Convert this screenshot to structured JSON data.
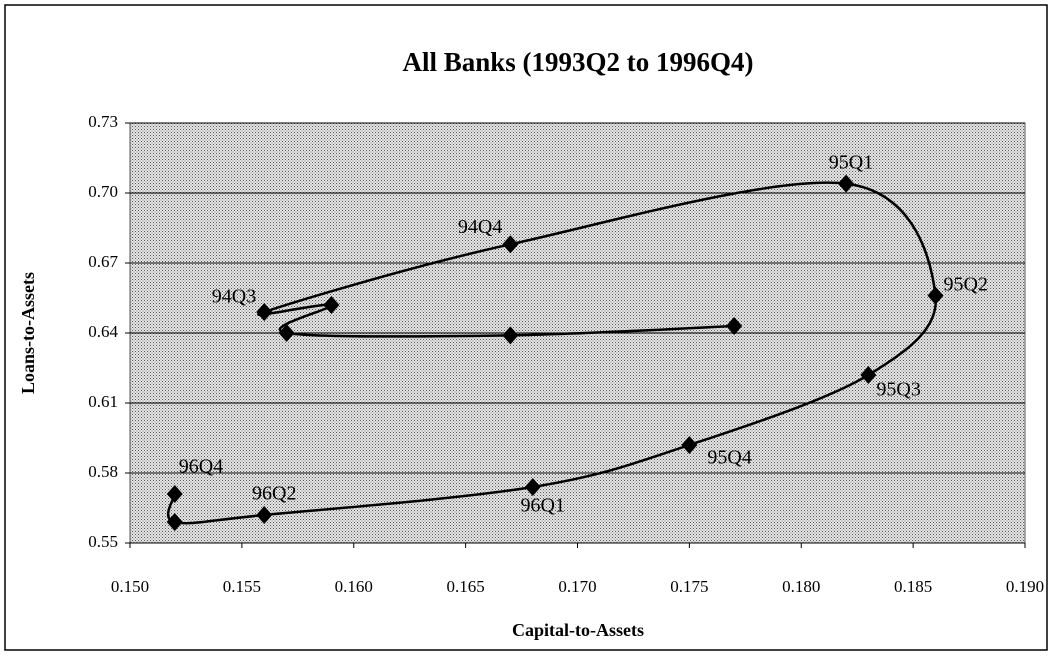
{
  "chart_data": {
    "type": "scatter",
    "title": "All Banks (1993Q2 to 1996Q4)",
    "x_label": "Capital-to-Assets",
    "y_label": "Loans-to-Assets",
    "color": "#000000",
    "x": [
      0.177,
      0.167,
      0.157,
      0.159,
      0.156,
      0.167,
      0.182,
      0.186,
      0.183,
      0.175,
      0.168,
      0.156,
      0.152,
      0.152
    ],
    "values": [
      0.643,
      0.639,
      0.64,
      0.652,
      0.649,
      0.678,
      0.704,
      0.656,
      0.622,
      0.592,
      0.574,
      0.562,
      0.559,
      0.571
    ],
    "labels": [
      null,
      null,
      null,
      null,
      "94Q3",
      "94Q4",
      "95Q1",
      "95Q2",
      "95Q3",
      "95Q4",
      "96Q1",
      "96Q2",
      null,
      "96Q4"
    ],
    "xlim": [
      0.15,
      0.19
    ],
    "xticks": [
      {
        "value": 0.15,
        "label": "0.150"
      },
      0.155,
      {
        "value": 0.16,
        "label": "0.160"
      },
      0.165,
      {
        "value": 0.17,
        "label": "0.170"
      },
      0.175,
      {
        "value": 0.18,
        "label": "0.180"
      },
      0.185,
      {
        "value": 0.19,
        "label": "0.190"
      }
    ],
    "ylim": [
      0.55,
      0.73
    ],
    "yticks": [
      0.55,
      0.58,
      0.61,
      0.64,
      0.67,
      {
        "value": 0.7,
        "label": "0.70"
      },
      0.73
    ],
    "grid": true,
    "smooth": true
  }
}
